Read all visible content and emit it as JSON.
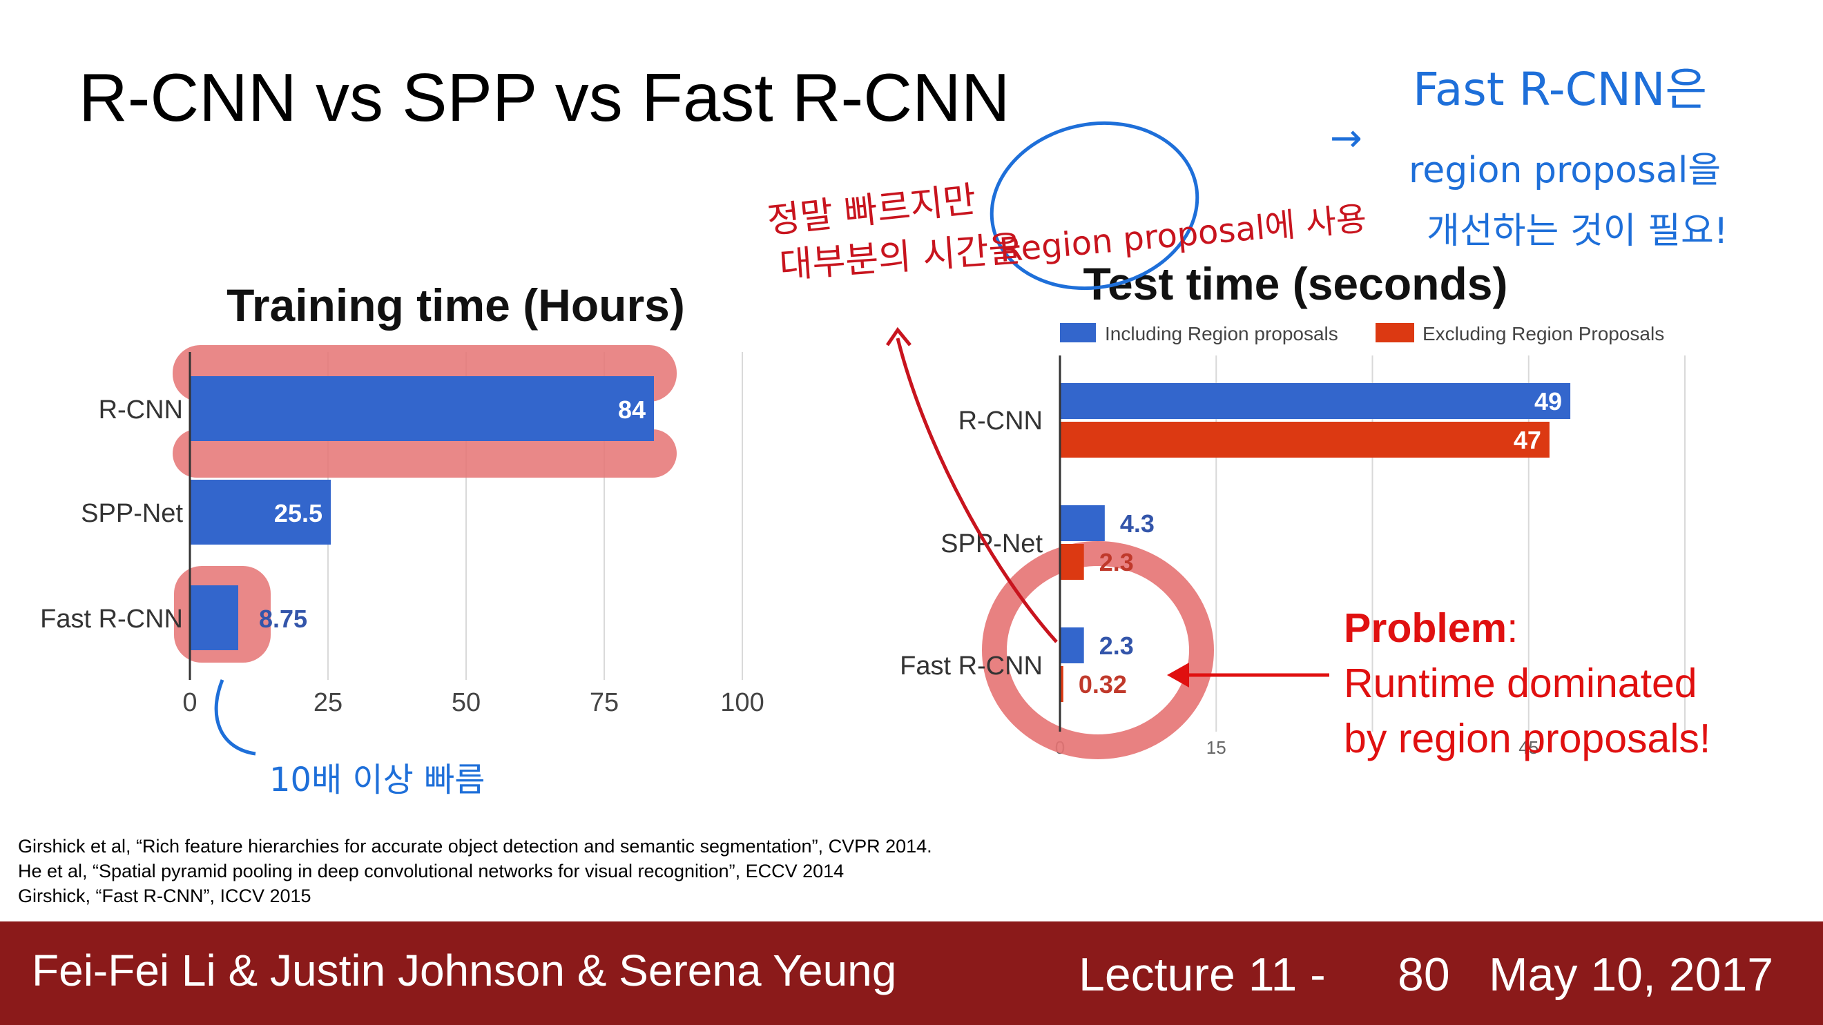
{
  "slide": {
    "title": "R-CNN vs SPP vs Fast R-CNN",
    "problem_bold": "Problem",
    "problem_colon": ":",
    "problem_line1": "Runtime dominated",
    "problem_line2": "by region proposals!"
  },
  "references": [
    "Girshick et al, “Rich feature hierarchies for accurate object detection and semantic segmentation”, CVPR 2014.",
    "He et al, “Spatial pyramid pooling in deep convolutional networks for visual recognition”, ECCV 2014",
    "Girshick, “Fast R-CNN”, ICCV 2015"
  ],
  "footer": {
    "authors": "Fei-Fei Li & Justin Johnson & Serena Yeung",
    "lecture": "Lecture 11 -",
    "page": "80",
    "date": "May 10, 2017"
  },
  "annotations": {
    "red_line1": "정말 빠르지만",
    "red_line2": "대부분의 시간을",
    "red_region": "Region proposal에 사용",
    "blue_line1": "Fast R-CNN은",
    "blue_line2": "region proposal을",
    "blue_line3": "개선하는 것이 필요!",
    "blue_arrow": "→",
    "blue_bottom": "10배 이상 빠름"
  },
  "chart_data": [
    {
      "type": "bar",
      "orientation": "horizontal",
      "title": "Training time (Hours)",
      "categories": [
        "R-CNN",
        "SPP-Net",
        "Fast R-CNN"
      ],
      "values": [
        84,
        25.5,
        8.75
      ],
      "value_labels": [
        "84",
        "25.5",
        "8.75"
      ],
      "xlim": [
        0,
        100
      ],
      "xticks": [
        0,
        25,
        50,
        75,
        100
      ],
      "grid": true,
      "colors": {
        "bar": "#3366cc"
      }
    },
    {
      "type": "bar",
      "orientation": "horizontal",
      "title": "Test time (seconds)",
      "categories": [
        "R-CNN",
        "SPP-Net",
        "Fast R-CNN"
      ],
      "series": [
        {
          "name": "Including Region proposals",
          "values": [
            49,
            4.3,
            2.3
          ],
          "labels": [
            "49",
            "4.3",
            "2.3"
          ],
          "color": "#3366cc"
        },
        {
          "name": "Excluding Region Proposals",
          "values": [
            47,
            2.3,
            0.32
          ],
          "labels": [
            "47",
            "2.3",
            "0.32"
          ],
          "color": "#dc3912"
        }
      ],
      "xlim": [
        0,
        60
      ],
      "xticks": [
        0,
        15,
        30,
        45,
        60
      ],
      "xtick_labels": [
        "0",
        "15",
        "",
        "45",
        ""
      ],
      "grid": true,
      "legend": "top"
    }
  ]
}
